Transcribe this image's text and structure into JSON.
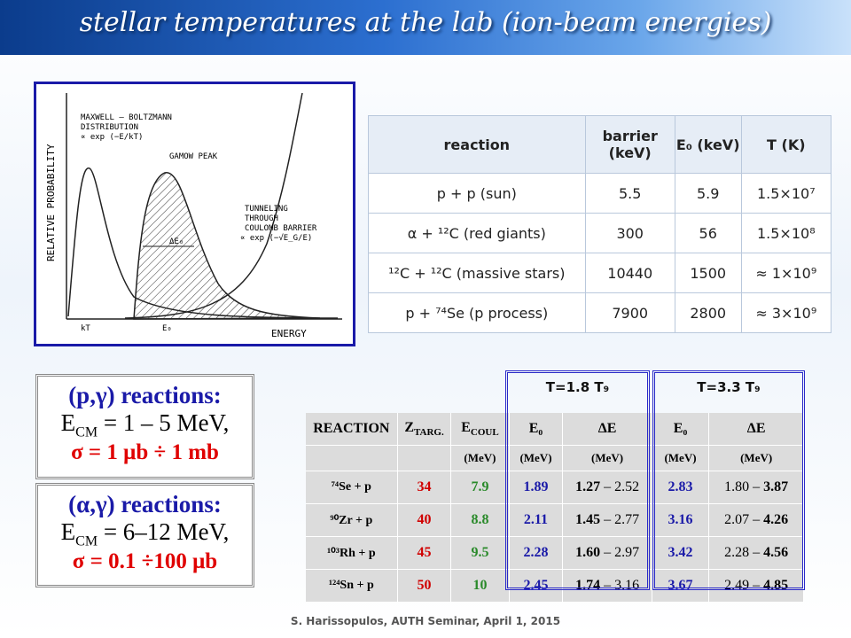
{
  "title": "stellar temperatures at the lab (ion-beam energies)",
  "figure": {
    "y_label": "RELATIVE PROBABILITY",
    "x_label": "ENERGY",
    "mb_label": [
      "MAXWELL – BOLTZMANN",
      "DISTRIBUTION",
      "∝ exp (−E/kT)"
    ],
    "gamow_label": "GAMOW  PEAK",
    "tunnel_label": [
      "TUNNELING",
      "THROUGH",
      "COULOMB  BARRIER",
      "∝ exp (−√E_G/E)"
    ],
    "delta_label": "ΔE₀",
    "kt": "kT",
    "e0": "E₀"
  },
  "table1": {
    "header": [
      "reaction",
      "barrier (keV)",
      "E₀ (keV)",
      "T (K)"
    ],
    "rows": [
      [
        "p + p  (sun)",
        "5.5",
        "5.9",
        "1.5×10⁷"
      ],
      [
        "α + ¹²C  (red giants)",
        "300",
        "56",
        "1.5×10⁸"
      ],
      [
        "¹²C + ¹²C  (massive stars)",
        "10440",
        "1500",
        "≈ 1×10⁹"
      ],
      [
        "p + ⁷⁴Se  (p process)",
        "7900",
        "2800",
        "≈ 3×10⁹"
      ]
    ]
  },
  "boxes": [
    {
      "title": "(p,γ) reactions:",
      "e": "E",
      "sub": "CM",
      "energy": " = 1 – 5  MeV,",
      "sigma": "σ = 1 μb ÷ 1 mb"
    },
    {
      "title": "(α,γ) reactions:",
      "e": "E",
      "sub": "CM",
      "energy": " = 6–12  MeV,",
      "sigma": "σ = 0.1 ÷100 μb"
    }
  ],
  "table2": {
    "groups": [
      "T=1.8 T₉",
      "T=3.3 T₉"
    ],
    "header": [
      "REACTION",
      [
        "Z",
        "TARG."
      ],
      [
        "E",
        "COUL"
      ],
      "E₀",
      "ΔE",
      "E₀",
      "ΔE"
    ],
    "units": [
      "(MeV)",
      "(MeV)",
      "(MeV)",
      "(MeV)",
      "(MeV)"
    ],
    "rows": [
      [
        "⁷⁴Se + p",
        "34",
        "7.9",
        "1.89",
        [
          "1.27",
          " – 2.52"
        ],
        "2.83",
        [
          "1.80 – ",
          "3.87"
        ]
      ],
      [
        "⁹⁰Zr + p",
        "40",
        "8.8",
        "2.11",
        [
          "1.45",
          " – 2.77"
        ],
        "3.16",
        [
          "2.07 – ",
          "4.26"
        ]
      ],
      [
        "¹⁰³Rh + p",
        "45",
        "9.5",
        "2.28",
        [
          "1.60",
          " – 2.97"
        ],
        "3.42",
        [
          "2.28 – ",
          "4.56"
        ]
      ],
      [
        "¹²⁴Sn + p",
        "50",
        "10",
        "2.45",
        [
          "1.74",
          " – 3.16"
        ],
        "3.67",
        [
          "2.49 – ",
          "4.85"
        ]
      ]
    ]
  },
  "footer": "S. Harissopulos, AUTH Seminar, April 1, 2015"
}
